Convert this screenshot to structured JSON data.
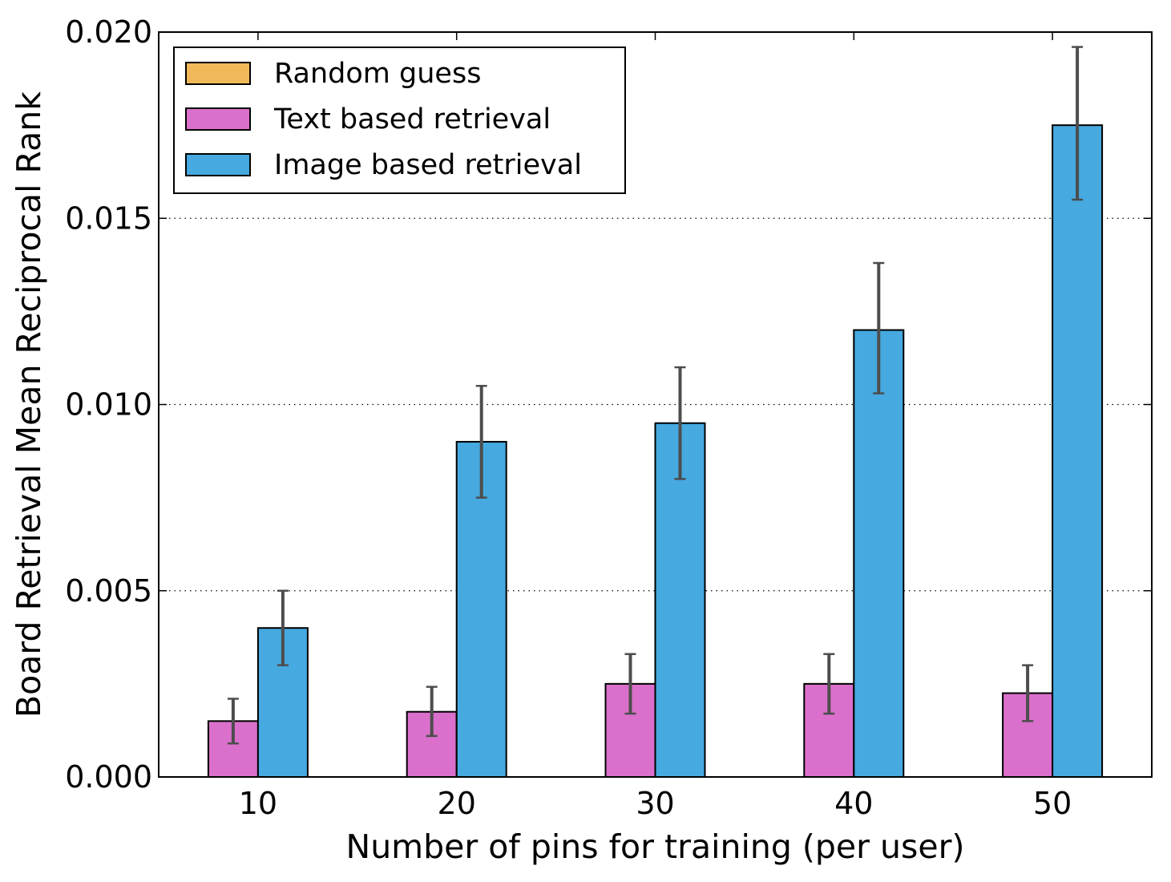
{
  "chart_data": {
    "type": "bar",
    "title": "",
    "xlabel": "Number of pins for training (per user)",
    "ylabel": "Board Retrieval Mean Reciprocal Rank",
    "categories": [
      "10",
      "20",
      "30",
      "40",
      "50"
    ],
    "ylim": [
      0,
      0.02
    ],
    "yticks": [
      0.0,
      0.005,
      0.01,
      0.015,
      0.02
    ],
    "ytick_labels": [
      "0.000",
      "0.005",
      "0.010",
      "0.015",
      "0.020"
    ],
    "grid": "y dotted",
    "legend_position": "top-left",
    "series": [
      {
        "name": "Random guess",
        "color": "#f2b95b",
        "values": [
          0.0,
          0.0,
          0.0,
          0.0,
          0.0
        ],
        "err_low": [
          0.0,
          0.0,
          0.0,
          0.0,
          0.0
        ],
        "err_high": [
          0.0,
          0.0,
          0.0,
          0.0,
          0.0
        ]
      },
      {
        "name": "Text based retrieval",
        "color": "#da70cb",
        "values": [
          0.0015,
          0.00175,
          0.0025,
          0.0025,
          0.00225
        ],
        "err_low": [
          0.0009,
          0.0011,
          0.0017,
          0.0017,
          0.0015
        ],
        "err_high": [
          0.0021,
          0.00242,
          0.0033,
          0.0033,
          0.003
        ]
      },
      {
        "name": "Image based retrieval",
        "color": "#46a9e0",
        "values": [
          0.004,
          0.009,
          0.0095,
          0.012,
          0.0175
        ],
        "err_low": [
          0.003,
          0.0075,
          0.008,
          0.0103,
          0.0155
        ],
        "err_high": [
          0.005,
          0.0105,
          0.011,
          0.0138,
          0.0196
        ]
      }
    ],
    "error_bar_color": "#4d4d4d"
  }
}
